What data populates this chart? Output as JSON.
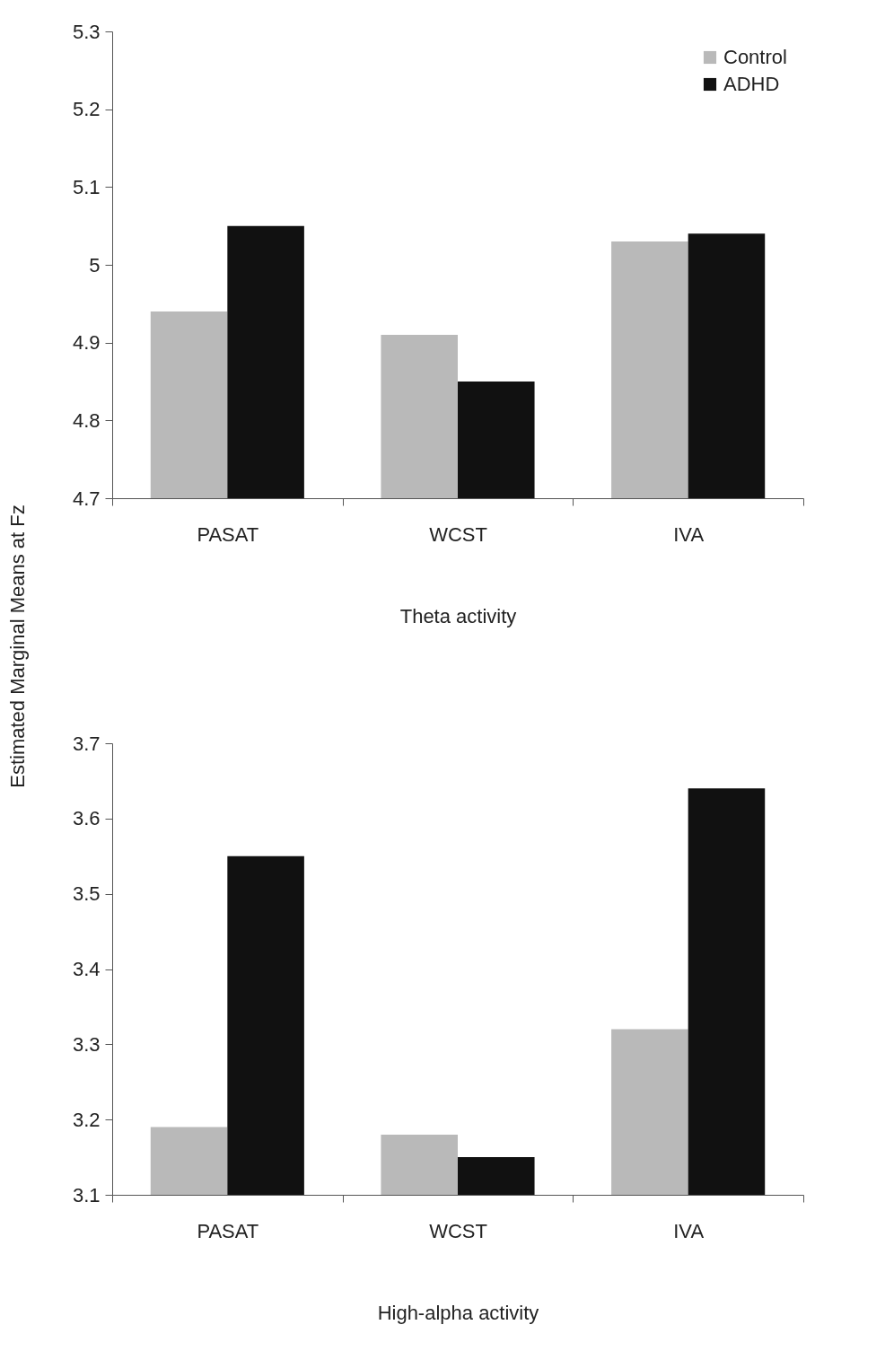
{
  "chart_data": [
    {
      "type": "bar",
      "categories": [
        "PASAT",
        "WCST",
        "IVA"
      ],
      "ylabel": "Estimated Marginal Means at Fz",
      "xlabel": "Theta activity",
      "series": [
        {
          "name": "Control",
          "color": "#b9b9b9",
          "values": [
            4.94,
            4.91,
            5.03
          ]
        },
        {
          "name": "ADHD",
          "color": "#111111",
          "values": [
            5.05,
            4.85,
            5.04
          ]
        }
      ],
      "ylim": [
        4.7,
        5.3
      ],
      "yticks": [
        4.7,
        4.8,
        4.9,
        5,
        5.1,
        5.2,
        5.3
      ],
      "legend": "top right",
      "grid": false
    },
    {
      "type": "bar",
      "categories": [
        "PASAT",
        "WCST",
        "IVA"
      ],
      "xlabel": "High-alpha activity",
      "series": [
        {
          "color": "#b9b9b9",
          "values": [
            3.19,
            3.18,
            3.32
          ]
        },
        {
          "color": "#111111",
          "values": [
            3.55,
            3.15,
            3.64
          ]
        }
      ],
      "ylim": [
        3.1,
        3.7
      ],
      "yticks": [
        3.1,
        3.2,
        3.3,
        3.4,
        3.5,
        3.6,
        3.7
      ],
      "grid": false
    }
  ]
}
